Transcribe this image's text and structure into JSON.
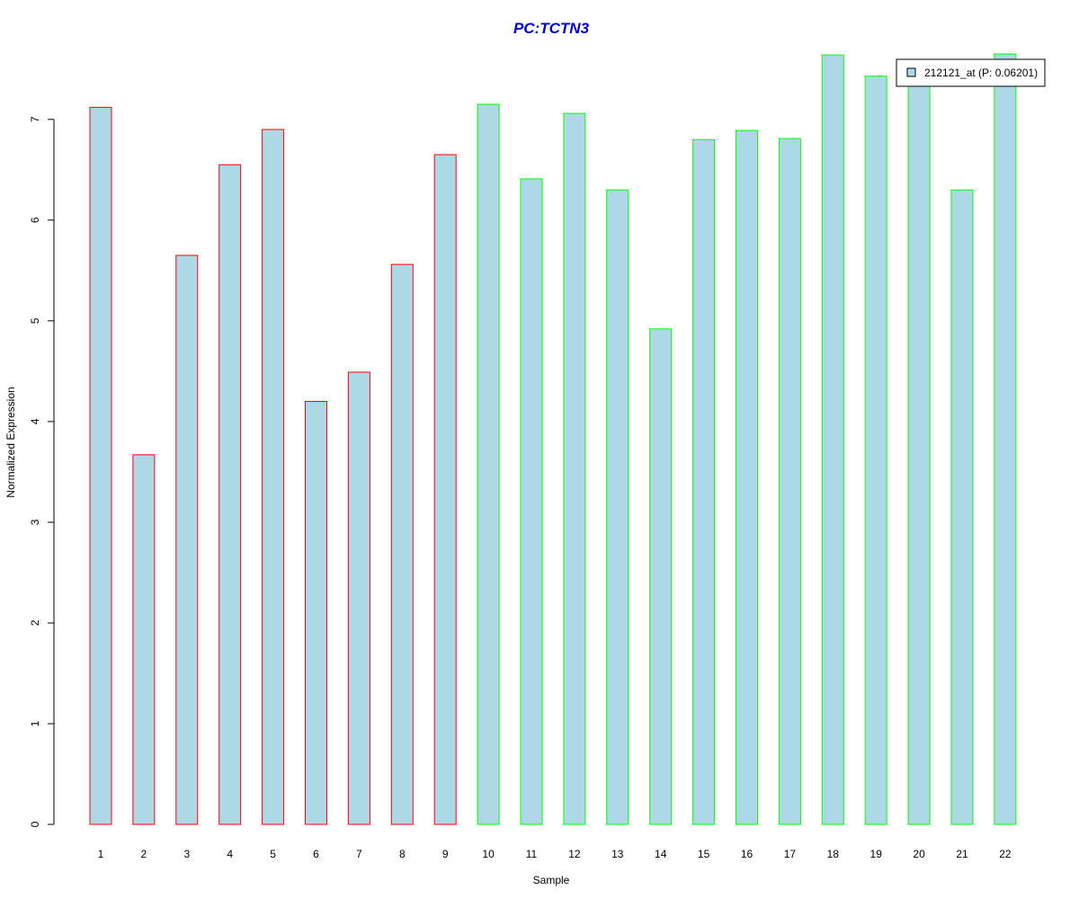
{
  "chart_data": {
    "type": "bar",
    "title": "PC:TCTN3",
    "xlabel": "Sample",
    "ylabel": "Normalized Expression",
    "categories": [
      "1",
      "2",
      "3",
      "4",
      "5",
      "6",
      "7",
      "8",
      "9",
      "10",
      "11",
      "12",
      "13",
      "14",
      "15",
      "16",
      "17",
      "18",
      "19",
      "20",
      "21",
      "22"
    ],
    "series": [
      {
        "name": "212121_at (P: 0.06201)",
        "values": [
          7.12,
          3.67,
          5.65,
          6.55,
          6.9,
          4.2,
          4.49,
          5.56,
          6.65,
          7.15,
          6.41,
          7.06,
          6.3,
          4.92,
          6.8,
          6.89,
          6.81,
          7.64,
          7.43,
          7.59,
          6.3,
          7.65
        ]
      }
    ],
    "groups": [
      0,
      0,
      0,
      0,
      0,
      0,
      0,
      0,
      0,
      1,
      1,
      1,
      1,
      1,
      1,
      1,
      1,
      1,
      1,
      1,
      1,
      1
    ],
    "yticks": [
      0,
      1,
      2,
      3,
      4,
      5,
      6,
      7
    ],
    "ylim": [
      0,
      7.65
    ],
    "grid": false,
    "legend_position": "top-right",
    "colors": {
      "bar_fill": "#ADD8E6",
      "group_borders": [
        "#FF0000",
        "#00FF00"
      ],
      "title": "#0000CD",
      "axis": "#000000"
    }
  }
}
